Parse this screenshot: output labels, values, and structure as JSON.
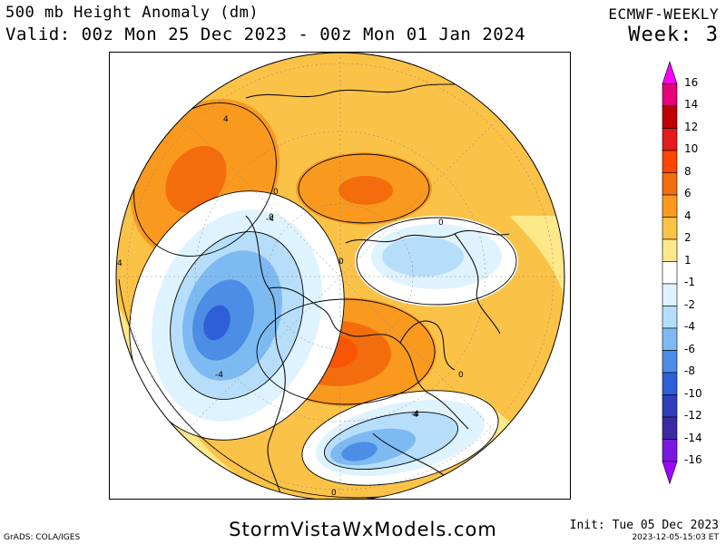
{
  "header": {
    "title": "500 mb Height Anomaly (dm)",
    "valid": "Valid: 00z Mon 25 Dec 2023 - 00z Mon 01 Jan 2024",
    "model": "ECMWF-WEEKLY",
    "week": "Week: 3"
  },
  "footer": {
    "site": "StormVistaWxModels.com",
    "grads": "GrADS: COLA/IGES",
    "init": "Init: Tue 05 Dec 2023",
    "timestamp": "2023-12-05-15:03 ET"
  },
  "colorbar": {
    "labels": [
      "16",
      "14",
      "12",
      "10",
      "8",
      "6",
      "4",
      "2",
      "1",
      "-1",
      "-2",
      "-4",
      "-6",
      "-8",
      "-10",
      "-12",
      "-14",
      "-16"
    ],
    "colors": [
      "#ff00ff",
      "#e6007a",
      "#c00000",
      "#e41a1c",
      "#ff4500",
      "#f46d0c",
      "#f99a1e",
      "#fbc248",
      "#fde98a",
      "#ffffff",
      "#dff3ff",
      "#b6defb",
      "#7ebaf2",
      "#4c8de6",
      "#2f5fd8",
      "#2d3fbf",
      "#3c2aa3",
      "#7a18e0",
      "#a000ff"
    ]
  },
  "map": {
    "contour_labels": [
      "4",
      "0",
      "-4",
      "0",
      "4",
      "-4",
      "0",
      "4",
      "0",
      "-4",
      "0",
      "0"
    ],
    "colors": {
      "warm_1": "#fde98a",
      "warm_2": "#fbc248",
      "warm_3": "#f99a1e",
      "warm_4": "#f46d0c",
      "warm_5": "#ff4500",
      "cool_1": "#dff3ff",
      "cool_2": "#b6defb",
      "cool_3": "#7ebaf2",
      "cool_4": "#4c8de6",
      "cool_5": "#2f5fd8"
    }
  }
}
